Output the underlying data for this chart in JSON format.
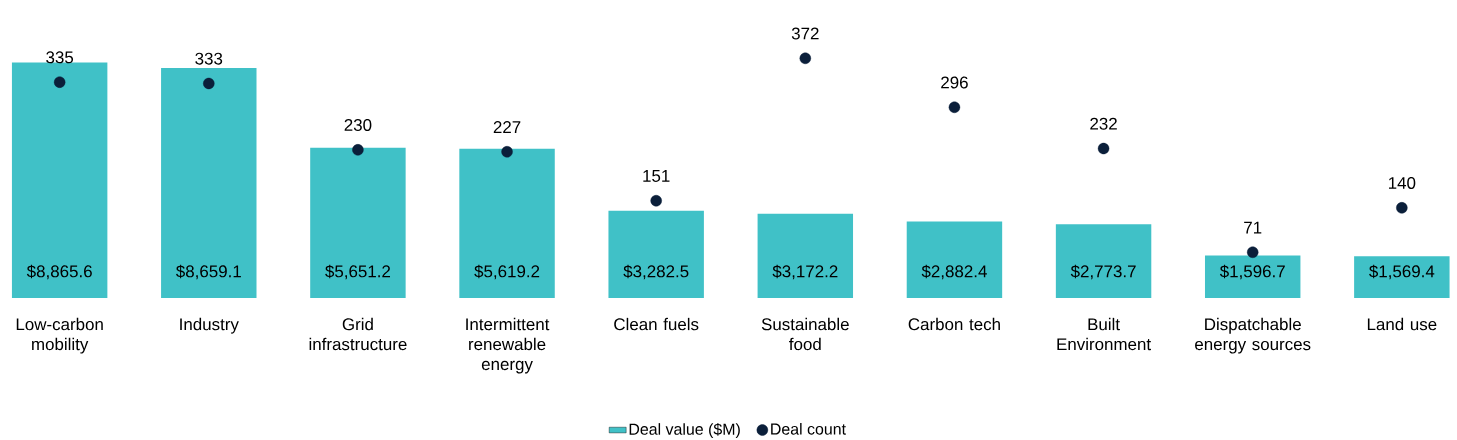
{
  "chart_data": {
    "type": "bar",
    "categories": [
      "Low-carbon mobility",
      "Industry",
      "Grid infrastructure",
      "Intermittent renewable energy",
      "Clean fuels",
      "Sustainable food",
      "Carbon tech",
      "Built Environment",
      "Dispatchable energy sources",
      "Land use"
    ],
    "series": [
      {
        "name": "Deal value ($M)",
        "color": "#40c1c7",
        "values": [
          8865.6,
          8659.1,
          5651.2,
          5619.2,
          3282.5,
          3172.2,
          2882.4,
          2773.7,
          1596.7,
          1569.4
        ],
        "value_labels": [
          "$8,865.6",
          "$8,659.1",
          "$5,651.2",
          "$5,619.2",
          "$3,282.5",
          "$3,172.2",
          "$2,882.4",
          "$2,773.7",
          "$1,596.7",
          "$1,569.4"
        ]
      },
      {
        "name": "Deal count",
        "type": "scatter",
        "axis": "y2",
        "color": "#0b1f3a",
        "values": [
          335,
          333,
          230,
          227,
          151,
          372,
          296,
          232,
          71,
          140
        ],
        "value_labels": [
          "335",
          "333",
          "230",
          "227",
          "151",
          "372",
          "296",
          "232",
          "71",
          "140"
        ]
      }
    ],
    "legend": "bottom"
  }
}
